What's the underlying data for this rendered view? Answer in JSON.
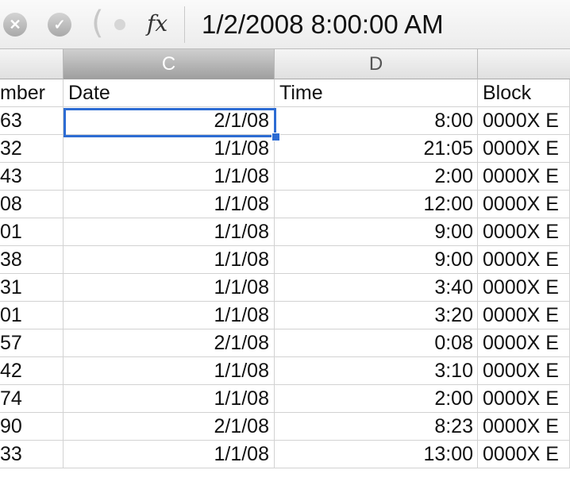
{
  "formula_bar": {
    "cancel_icon": "✕",
    "accept_icon": "✓",
    "fx_label": "fx",
    "value": "1/2/2008  8:00:00 AM"
  },
  "column_headers": [
    {
      "label": ""
    },
    {
      "label": "C"
    },
    {
      "label": "D"
    },
    {
      "label": ""
    }
  ],
  "table": {
    "headers": {
      "a": "mber",
      "c": "Date",
      "d": "Time",
      "e": "Block"
    },
    "rows": [
      {
        "a": "63",
        "c": "2/1/08",
        "d": "8:00",
        "e": "0000X E"
      },
      {
        "a": "32",
        "c": "1/1/08",
        "d": "21:05",
        "e": "0000X E"
      },
      {
        "a": "43",
        "c": "1/1/08",
        "d": "2:00",
        "e": "0000X E"
      },
      {
        "a": "08",
        "c": "1/1/08",
        "d": "12:00",
        "e": "0000X E"
      },
      {
        "a": "01",
        "c": "1/1/08",
        "d": "9:00",
        "e": "0000X E"
      },
      {
        "a": "38",
        "c": "1/1/08",
        "d": "9:00",
        "e": "0000X E"
      },
      {
        "a": "31",
        "c": "1/1/08",
        "d": "3:40",
        "e": "0000X E"
      },
      {
        "a": "01",
        "c": "1/1/08",
        "d": "3:20",
        "e": "0000X E"
      },
      {
        "a": "57",
        "c": "2/1/08",
        "d": "0:08",
        "e": "0000X E"
      },
      {
        "a": "42",
        "c": "1/1/08",
        "d": "3:10",
        "e": "0000X E"
      },
      {
        "a": "74",
        "c": "1/1/08",
        "d": "2:00",
        "e": "0000X E"
      },
      {
        "a": "90",
        "c": "2/1/08",
        "d": "8:23",
        "e": "0000X E"
      },
      {
        "a": "33",
        "c": "1/1/08",
        "d": "13:00",
        "e": "0000X E"
      }
    ]
  },
  "colors": {
    "selection": "#2d6cd3"
  }
}
